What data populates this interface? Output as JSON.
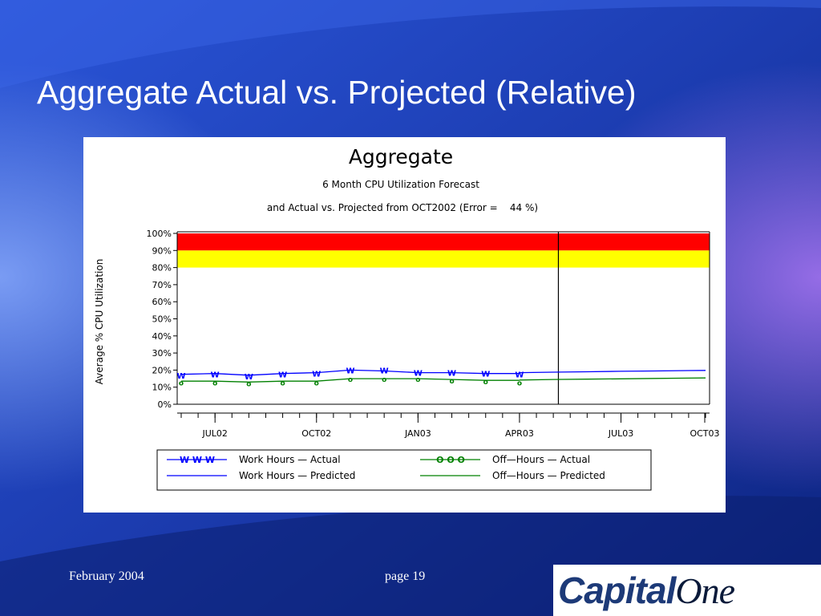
{
  "slide": {
    "title": "Aggregate Actual vs. Projected (Relative)",
    "footer_date": "February 2004",
    "footer_page": "page 19",
    "logo_text_1": "Capital",
    "logo_text_2": "One",
    "colors": {
      "background": "#1a3aa8",
      "title": "#ffffff"
    }
  },
  "chart_data": {
    "type": "line",
    "title": "Aggregate",
    "subtitle_1": "6 Month CPU Utilization Forecast",
    "subtitle_2": "and Actual vs. Projected from OCT2002 (Error =    44 %)",
    "ylabel": "Average % CPU Utilization",
    "ylim": [
      0,
      100
    ],
    "yticks": [
      "0%",
      "10%",
      "20%",
      "30%",
      "40%",
      "50%",
      "60%",
      "70%",
      "80%",
      "90%",
      "100%"
    ],
    "xlim": [
      0,
      31
    ],
    "xtick_labels": [
      {
        "x": 2,
        "label": "JUL02"
      },
      {
        "x": 8,
        "label": "OCT02"
      },
      {
        "x": 14,
        "label": "JAN03"
      },
      {
        "x": 20,
        "label": "APR03"
      },
      {
        "x": 26,
        "label": "JUL03"
      },
      {
        "x": 32,
        "label": "OCT03"
      }
    ],
    "reference_line_x": 22.3,
    "bands": [
      {
        "from": 90,
        "to": 100,
        "color": "#ff0000"
      },
      {
        "from": 80,
        "to": 90,
        "color": "#ffff00"
      }
    ],
    "series": [
      {
        "name": "Work Hours — Actual",
        "color": "#0000ff",
        "marker": "W",
        "x": [
          0,
          2,
          4,
          6,
          8,
          10,
          12,
          14,
          16,
          18,
          20
        ],
        "y": [
          17,
          17.5,
          16.5,
          17.5,
          18,
          20,
          20,
          18.5,
          18.5,
          18,
          17.5
        ],
        "line_x": [
          0,
          2,
          4,
          6,
          8,
          10,
          12,
          14,
          16,
          18,
          20
        ],
        "line_y": [
          17.5,
          18,
          17,
          18,
          18.5,
          20,
          19.5,
          18.5,
          18.5,
          18,
          18
        ]
      },
      {
        "name": "Work Hours — Predicted",
        "color": "#0000ff",
        "marker": "none",
        "x": [
          20,
          22,
          24,
          26,
          28,
          30,
          31
        ],
        "y": [
          18.5,
          18.8,
          19,
          19.3,
          19.5,
          19.7,
          19.8
        ]
      },
      {
        "name": "Off—Hours — Actual",
        "color": "#008000",
        "marker": "O",
        "x": [
          0,
          2,
          4,
          6,
          8,
          10,
          12,
          14,
          16,
          18,
          20
        ],
        "y": [
          13,
          13,
          12.5,
          13,
          13,
          15,
          15,
          15,
          14,
          13.5,
          13
        ],
        "line_x": [
          0,
          2,
          4,
          6,
          8,
          10,
          12,
          14,
          16,
          18,
          20
        ],
        "line_y": [
          13.5,
          13.5,
          13,
          13.5,
          13.5,
          15,
          15,
          15,
          14.5,
          14,
          14
        ]
      },
      {
        "name": "Off—Hours — Predicted",
        "color": "#008000",
        "marker": "none",
        "x": [
          20,
          22,
          24,
          26,
          28,
          30,
          31
        ],
        "y": [
          14.2,
          14.5,
          14.7,
          14.9,
          15.1,
          15.3,
          15.4
        ]
      }
    ],
    "legend": [
      {
        "marker_text": "W  W  W",
        "color": "#0000ff",
        "style": "marker-line",
        "label": "Work Hours — Actual"
      },
      {
        "marker_text": "O  O  O",
        "color": "#008000",
        "style": "marker-line",
        "label": "Off—Hours — Actual"
      },
      {
        "marker_text": "",
        "color": "#0000ff",
        "style": "line",
        "label": "Work Hours — Predicted"
      },
      {
        "marker_text": "",
        "color": "#008000",
        "style": "line",
        "label": "Off—Hours — Predicted"
      }
    ],
    "legend_placement": "bottom",
    "grid": false
  }
}
